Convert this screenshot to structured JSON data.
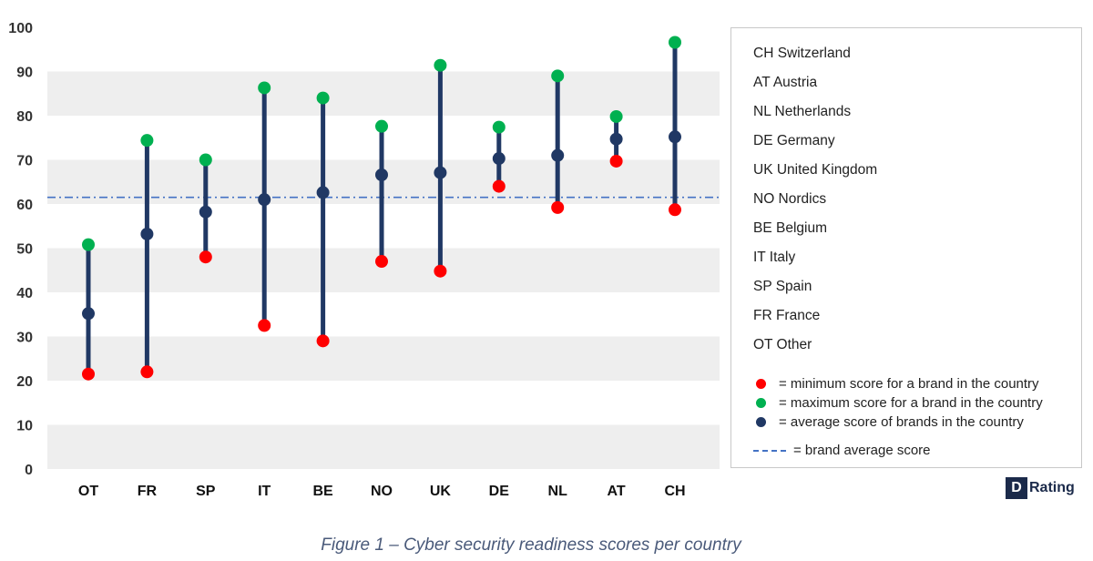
{
  "chart_data": {
    "type": "scatter",
    "subtype": "range-dot",
    "categories": [
      "OT",
      "FR",
      "SP",
      "IT",
      "BE",
      "NO",
      "UK",
      "DE",
      "NL",
      "AT",
      "CH"
    ],
    "series": [
      {
        "key": "min",
        "color": "#ff0000",
        "values": [
          21.5,
          22,
          48,
          32.5,
          29,
          47,
          44.8,
          64,
          59.2,
          69.7,
          58.7
        ]
      },
      {
        "key": "max",
        "color": "#00b050",
        "values": [
          50.8,
          74.4,
          70,
          86.3,
          84,
          77.6,
          91.4,
          77.4,
          89,
          79.8,
          96.6
        ]
      },
      {
        "key": "avg",
        "color": "#203864",
        "values": [
          35.2,
          53.2,
          58.2,
          61,
          62.6,
          66.6,
          67.1,
          70.3,
          71,
          74.7,
          75.2
        ]
      }
    ],
    "reference_line": {
      "value": 61.5,
      "color": "#4472c4",
      "style": "dash-dot"
    },
    "range_line_color": "#203864",
    "yticks": [
      "0",
      "10",
      "20",
      "30",
      "40",
      "50",
      "60",
      "70",
      "80",
      "90",
      "100"
    ],
    "ylim": [
      0,
      100
    ],
    "grid": "alternating bands",
    "band_color": "#eeeeee",
    "legend_placement": "right",
    "title": "",
    "xlabel": "",
    "ylabel": ""
  },
  "legend": {
    "countries": [
      "CH Switzerland",
      "AT Austria",
      "NL Netherlands",
      "DE Germany",
      "UK United Kingdom",
      "NO Nordics",
      "BE Belgium",
      "IT Italy",
      "SP Spain",
      "FR France",
      "OT Other"
    ],
    "keys": [
      {
        "label": "= minimum score for a brand in the country",
        "color": "#ff0000",
        "kind": "dot"
      },
      {
        "label": "= maximum score for a brand in the country",
        "color": "#00b050",
        "kind": "dot"
      },
      {
        "label": "= average score of brands in the country",
        "color": "#203864",
        "kind": "dot"
      },
      {
        "label": "= brand average score",
        "color": "#4472c4",
        "kind": "dash"
      }
    ]
  },
  "logo": {
    "mark": "D",
    "text": "Rating"
  },
  "caption": "Figure 1 – Cyber security readiness scores per country"
}
